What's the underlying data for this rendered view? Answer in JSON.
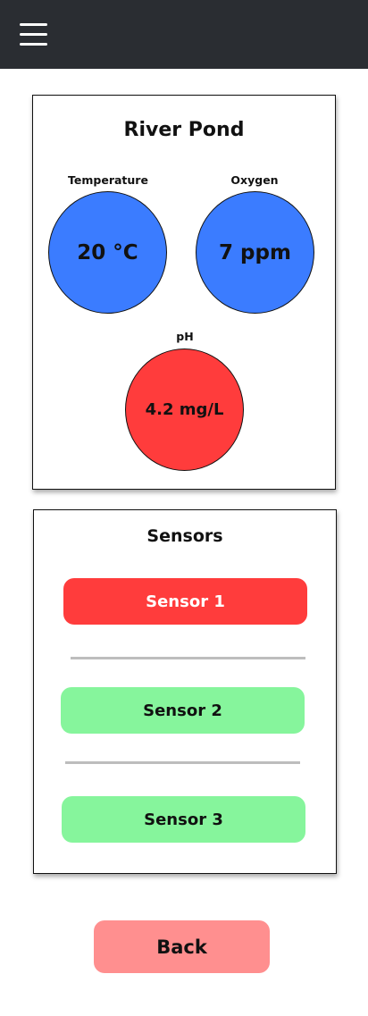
{
  "header": {
    "menu_icon": "hamburger-menu-icon"
  },
  "pond": {
    "title": "River Pond",
    "metrics": [
      {
        "label": "Temperature",
        "value": "20 °C",
        "color": "#3b7cff"
      },
      {
        "label": "Oxygen",
        "value": "7 ppm",
        "color": "#3b7cff"
      },
      {
        "label": "pH",
        "value": "4.2 mg/L",
        "color": "#ff3c3c"
      }
    ]
  },
  "sensors": {
    "title": "Sensors",
    "items": [
      {
        "label": "Sensor 1",
        "state": "active",
        "color": "#ff3c3c"
      },
      {
        "label": "Sensor 2",
        "state": "idle",
        "color": "#86f59c"
      },
      {
        "label": "Sensor 3",
        "state": "idle",
        "color": "#86f59c"
      }
    ]
  },
  "back_label": "Back",
  "colors": {
    "topbar": "#2a2d32",
    "back_button": "#ff8f8f"
  }
}
